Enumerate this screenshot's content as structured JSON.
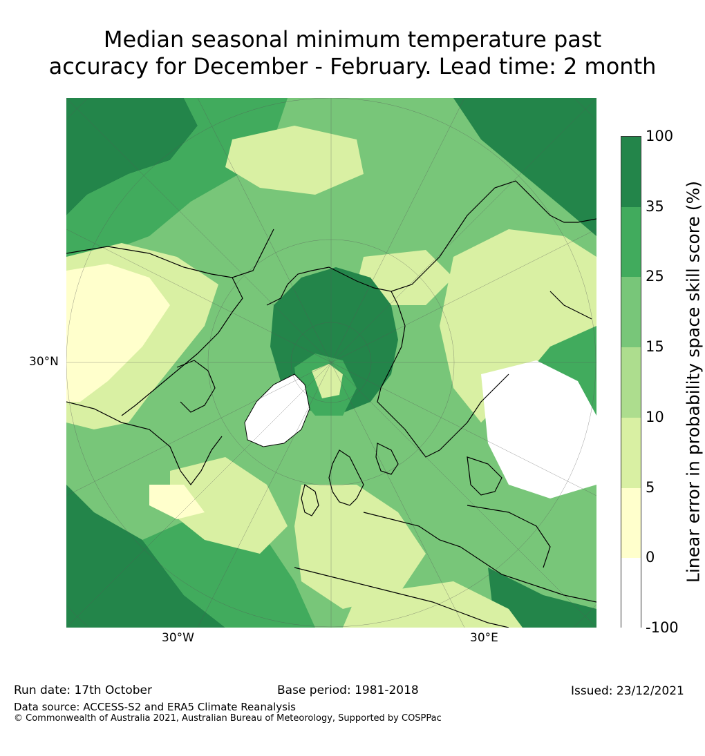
{
  "title": {
    "line1": "Median seasonal minimum temperature past",
    "line2": "accuracy for December - February. Lead time: 2 month"
  },
  "map": {
    "projection": "north-polar-stereographic",
    "tick_labels": {
      "lat_30n": "30°N",
      "lon_30w": "30°W",
      "lon_30e": "30°E"
    },
    "colors": {
      "ocean_base": "#7bc77c",
      "coastline": "#000000",
      "graticule": "#555555"
    }
  },
  "colorbar": {
    "label": "Linear error in probability space skill score (%)",
    "ticks": [
      "100",
      "35",
      "25",
      "15",
      "10",
      "5",
      "0",
      "-100"
    ],
    "bins": [
      {
        "range": "35 to 100",
        "color": "#23854a"
      },
      {
        "range": "25 to 35",
        "color": "#41ab5d"
      },
      {
        "range": "15 to 25",
        "color": "#78c679"
      },
      {
        "range": "10 to 15",
        "color": "#addd8e"
      },
      {
        "range": "5 to 10",
        "color": "#d9f0a3"
      },
      {
        "range": "0 to 5",
        "color": "#ffffcc"
      },
      {
        "range": "-100 to 0",
        "color": "#ffffff"
      }
    ]
  },
  "footer": {
    "run_date": "Run date: 17th October",
    "base_period": "Base period: 1981-2018",
    "issued": "Issued: 23/12/2021",
    "data_source": "Data source: ACCESS-S2 and ERA5 Climate Reanalysis",
    "copyright": "© Commonwealth of Australia 2021, Australian Bureau of Meteorology, Supported by COSPPac"
  }
}
